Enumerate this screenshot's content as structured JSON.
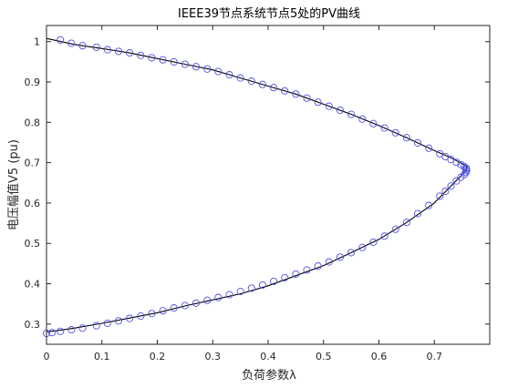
{
  "chart_data": {
    "type": "line",
    "title": "IEEE39节点系统节点5处的PV曲线",
    "xlabel": "负荷参数λ",
    "ylabel": "电压幅值V5 (pu)",
    "xlim": [
      0,
      0.8
    ],
    "ylim": [
      0.25,
      1.04
    ],
    "xticks": [
      "0",
      "0.1",
      "0.2",
      "0.3",
      "0.4",
      "0.5",
      "0.6",
      "0.7"
    ],
    "yticks": [
      "0.3",
      "0.4",
      "0.5",
      "0.6",
      "0.7",
      "0.8",
      "0.9",
      "1"
    ],
    "grid": false,
    "legend": "none",
    "series": [
      {
        "style": "line",
        "color": "#000000",
        "x": [
          0,
          0.05,
          0.1,
          0.15,
          0.2,
          0.25,
          0.3,
          0.35,
          0.4,
          0.45,
          0.5,
          0.55,
          0.6,
          0.65,
          0.7,
          0.73,
          0.75,
          0.758,
          0.758,
          0.75,
          0.73,
          0.7,
          0.65,
          0.6,
          0.55,
          0.5,
          0.45,
          0.4,
          0.35,
          0.3,
          0.25,
          0.2,
          0.15,
          0.1,
          0.05,
          0.02,
          0
        ],
        "y": [
          1.008,
          0.993,
          0.983,
          0.972,
          0.958,
          0.944,
          0.93,
          0.91,
          0.89,
          0.87,
          0.845,
          0.82,
          0.792,
          0.762,
          0.73,
          0.712,
          0.698,
          0.69,
          0.683,
          0.67,
          0.642,
          0.6,
          0.552,
          0.51,
          0.477,
          0.445,
          0.42,
          0.395,
          0.375,
          0.36,
          0.345,
          0.328,
          0.315,
          0.302,
          0.29,
          0.284,
          0.281
        ]
      },
      {
        "style": "markers",
        "marker": "circle",
        "color": "#5050e6",
        "x": [
          0.025,
          0.045,
          0.065,
          0.09,
          0.11,
          0.13,
          0.15,
          0.17,
          0.19,
          0.21,
          0.23,
          0.25,
          0.27,
          0.29,
          0.31,
          0.33,
          0.35,
          0.37,
          0.39,
          0.41,
          0.43,
          0.45,
          0.47,
          0.49,
          0.51,
          0.53,
          0.55,
          0.57,
          0.59,
          0.61,
          0.63,
          0.65,
          0.67,
          0.69,
          0.71,
          0.72,
          0.73,
          0.74,
          0.748,
          0.754,
          0.757,
          0.758,
          0.758,
          0.757,
          0.754,
          0.748,
          0.74,
          0.73,
          0.72,
          0.71,
          0.69,
          0.67,
          0.65,
          0.63,
          0.61,
          0.59,
          0.57,
          0.55,
          0.53,
          0.51,
          0.49,
          0.47,
          0.45,
          0.43,
          0.41,
          0.39,
          0.37,
          0.35,
          0.33,
          0.31,
          0.29,
          0.27,
          0.25,
          0.23,
          0.21,
          0.19,
          0.17,
          0.15,
          0.13,
          0.11,
          0.09,
          0.065,
          0.045,
          0.025,
          0.01,
          0.0
        ],
        "y": [
          1.004,
          0.996,
          0.99,
          0.986,
          0.98,
          0.976,
          0.972,
          0.966,
          0.96,
          0.955,
          0.95,
          0.944,
          0.938,
          0.932,
          0.926,
          0.918,
          0.91,
          0.902,
          0.894,
          0.886,
          0.878,
          0.87,
          0.86,
          0.85,
          0.84,
          0.83,
          0.82,
          0.808,
          0.797,
          0.786,
          0.774,
          0.762,
          0.749,
          0.736,
          0.722,
          0.715,
          0.708,
          0.701,
          0.695,
          0.69,
          0.687,
          0.684,
          0.68,
          0.676,
          0.671,
          0.664,
          0.655,
          0.642,
          0.629,
          0.617,
          0.594,
          0.574,
          0.552,
          0.535,
          0.518,
          0.503,
          0.49,
          0.477,
          0.466,
          0.454,
          0.444,
          0.434,
          0.424,
          0.415,
          0.406,
          0.397,
          0.389,
          0.381,
          0.373,
          0.366,
          0.359,
          0.352,
          0.346,
          0.34,
          0.333,
          0.326,
          0.32,
          0.314,
          0.308,
          0.302,
          0.296,
          0.29,
          0.286,
          0.282,
          0.279,
          0.277
        ]
      }
    ]
  }
}
